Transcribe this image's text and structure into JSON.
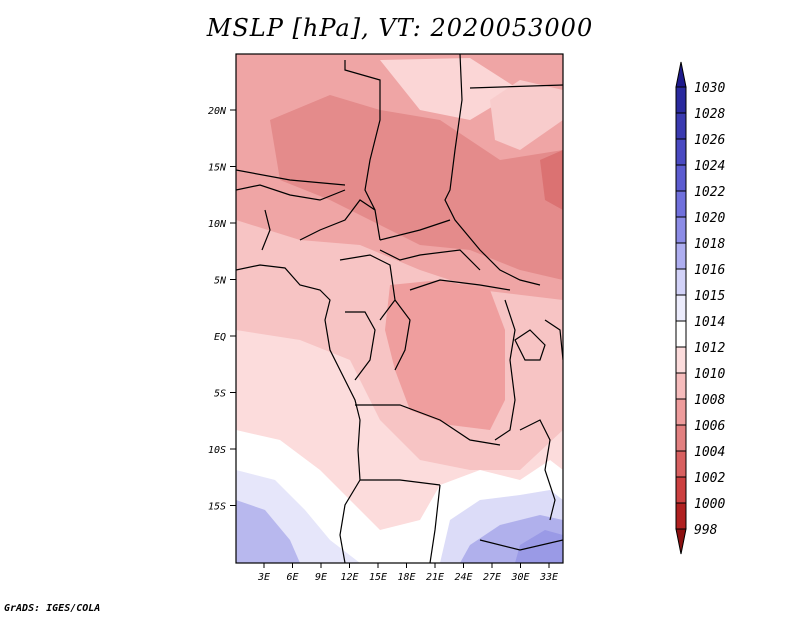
{
  "title": "MSLP [hPa], VT: 2020053000",
  "footer": "GrADS: IGES/COLA",
  "map": {
    "lat_ticks": [
      "20N",
      "15N",
      "10N",
      "5N",
      "EQ",
      "5S",
      "10S",
      "15S"
    ],
    "lon_ticks": [
      "3E",
      "6E",
      "9E",
      "12E",
      "15E",
      "18E",
      "21E",
      "24E",
      "27E",
      "30E",
      "33E"
    ],
    "lat_range_deg": [
      -20,
      25
    ],
    "lon_range_deg": [
      0,
      35
    ]
  },
  "colorbar": {
    "unit": "hPa",
    "labels": [
      "1030",
      "1028",
      "1026",
      "1024",
      "1022",
      "1020",
      "1018",
      "1016",
      "1015",
      "1014",
      "1012",
      "1010",
      "1008",
      "1006",
      "1004",
      "1002",
      "1000",
      "998"
    ],
    "colors": [
      "#1e1a8c",
      "#2a2a9e",
      "#3a3ab0",
      "#4a4ac2",
      "#5c5cd0",
      "#7070dc",
      "#8c8ce6",
      "#aeaef0",
      "#d2d2f8",
      "#ececfc",
      "#ffffff",
      "#fcdcdc",
      "#f6bcbc",
      "#ee9c9c",
      "#e28080",
      "#d86060",
      "#cc4040",
      "#b02020",
      "#8c1010"
    ]
  }
}
